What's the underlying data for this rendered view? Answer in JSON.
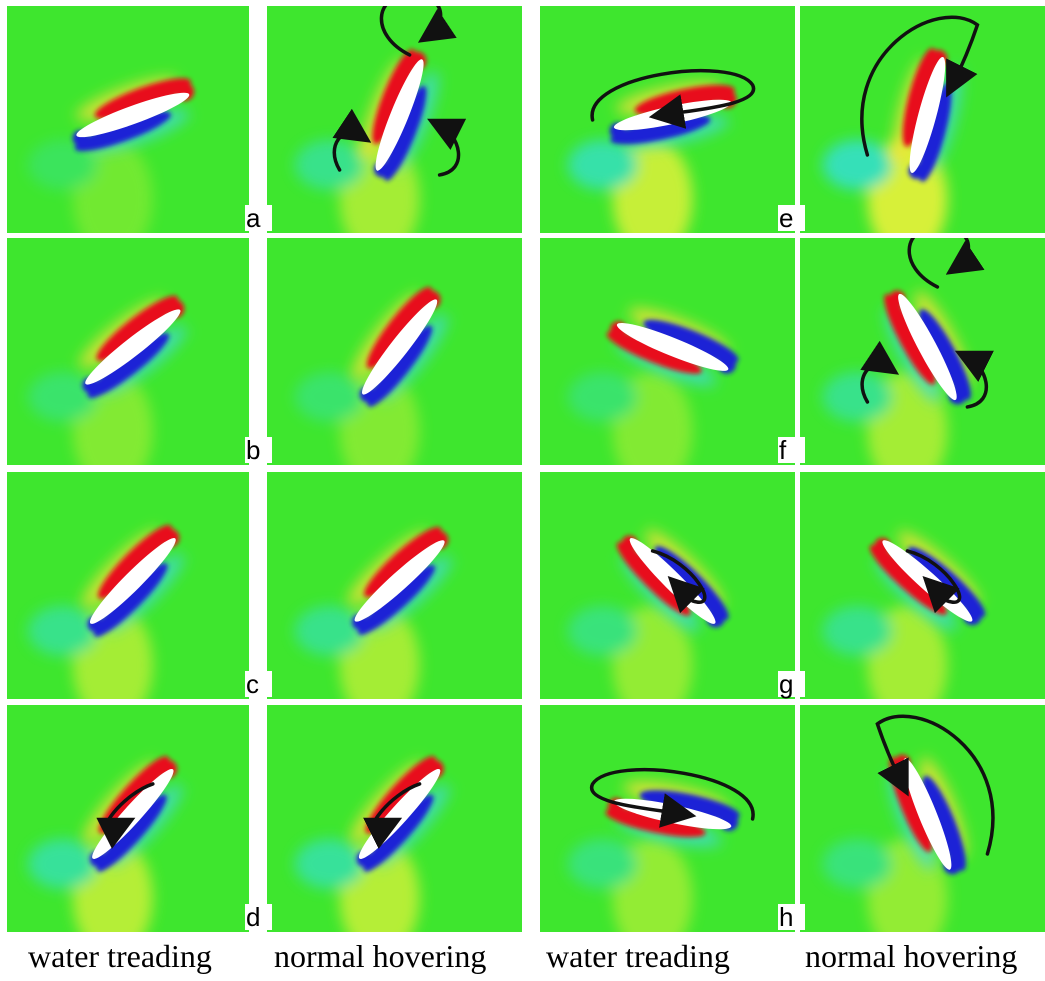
{
  "figure": {
    "rows": [
      {
        "letter": "a"
      },
      {
        "letter": "b"
      },
      {
        "letter": "c"
      },
      {
        "letter": "d"
      },
      {
        "letter": "e"
      },
      {
        "letter": "f"
      },
      {
        "letter": "g"
      },
      {
        "letter": "h"
      }
    ],
    "captions": [
      "water treading",
      "normal hovering",
      "water treading",
      "normal hovering"
    ],
    "colors": {
      "background_field": "#3ee62e",
      "positive_vorticity": "#e8101a",
      "negative_vorticity": "#1a22d6",
      "wing": "#ffffff",
      "streamline": "#111111"
    }
  }
}
